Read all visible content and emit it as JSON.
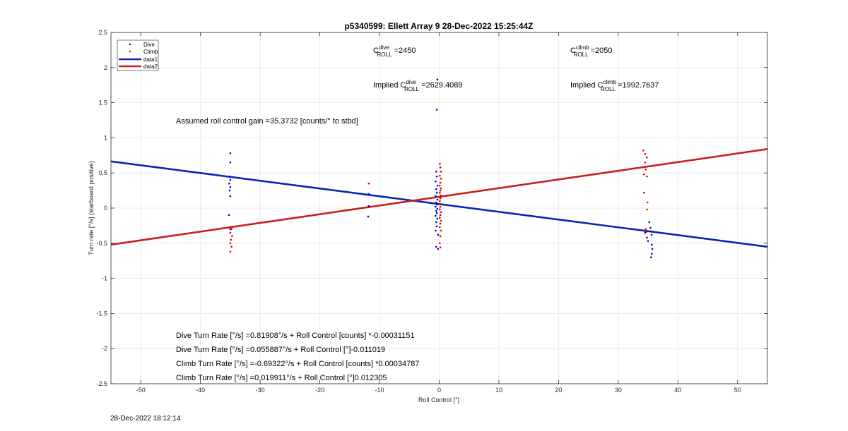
{
  "chart_data": {
    "type": "scatter",
    "title": "p5340599: Ellett Array 9 28-Dec-2022 15:25:44Z",
    "xlabel": "Roll Control [°]",
    "ylabel": "Turn rate [°/s] (starboard positive)",
    "xlim": [
      -55,
      55
    ],
    "ylim": [
      -2.5,
      2.5
    ],
    "xticks": [
      -50,
      -40,
      -30,
      -20,
      -10,
      0,
      10,
      20,
      30,
      40,
      50
    ],
    "yticks": [
      -2.5,
      -2,
      -1.5,
      -1,
      -0.5,
      0,
      0.5,
      1,
      1.5,
      2,
      2.5
    ],
    "grid": true,
    "legend_placement": "top-left",
    "legend": [
      "Dive",
      "Climb",
      "data1",
      "data2"
    ],
    "colors": {
      "dive": "#0000cc",
      "climb": "#dd0000",
      "data1": "#0a24b8",
      "data2": "#c81e1e"
    },
    "series": [
      {
        "name": "Dive",
        "kind": "points",
        "points": [
          [
            -35,
            0.78
          ],
          [
            -35,
            0.65
          ],
          [
            -35.1,
            0.45
          ],
          [
            -35,
            0.4
          ],
          [
            -35.2,
            0.35
          ],
          [
            -35,
            0.3
          ],
          [
            -35.1,
            0.25
          ],
          [
            -35,
            0.17
          ],
          [
            -35.2,
            -0.1
          ],
          [
            -35,
            -0.3
          ],
          [
            -11.8,
            0.2
          ],
          [
            -11.8,
            0.03
          ],
          [
            -11.9,
            -0.12
          ],
          [
            -0.3,
            1.83
          ],
          [
            -0.4,
            1.4
          ],
          [
            -0.5,
            0.52
          ],
          [
            -0.4,
            0.45
          ],
          [
            -0.6,
            0.38
          ],
          [
            -0.3,
            0.32
          ],
          [
            -0.5,
            0.27
          ],
          [
            -0.4,
            0.22
          ],
          [
            -0.6,
            0.17
          ],
          [
            -0.3,
            0.12
          ],
          [
            -0.5,
            0.08
          ],
          [
            -0.4,
            0.05
          ],
          [
            -0.6,
            0.02
          ],
          [
            -0.3,
            -0.01
          ],
          [
            -0.5,
            -0.04
          ],
          [
            -0.4,
            -0.07
          ],
          [
            -0.6,
            -0.11
          ],
          [
            -0.3,
            -0.15
          ],
          [
            -0.5,
            -0.2
          ],
          [
            -0.4,
            -0.26
          ],
          [
            -0.6,
            -0.32
          ],
          [
            -0.2,
            -0.38
          ],
          [
            -0.5,
            -0.55
          ],
          [
            -0.2,
            -0.58
          ],
          [
            34.5,
            -0.35
          ],
          [
            34.8,
            -0.42
          ],
          [
            35,
            -0.47
          ],
          [
            35.2,
            -0.2
          ],
          [
            35.4,
            -0.28
          ],
          [
            35.5,
            -0.33
          ],
          [
            35.6,
            -0.38
          ],
          [
            35.6,
            -0.52
          ],
          [
            35.7,
            -0.58
          ],
          [
            35.6,
            -0.65
          ],
          [
            35.5,
            -0.7
          ]
        ]
      },
      {
        "name": "Climb",
        "kind": "points",
        "points": [
          [
            -35,
            -0.27
          ],
          [
            -34.8,
            -0.3
          ],
          [
            -35,
            -0.35
          ],
          [
            -34.7,
            -0.4
          ],
          [
            -34.9,
            -0.45
          ],
          [
            -35,
            -0.5
          ],
          [
            -34.8,
            -0.55
          ],
          [
            -35,
            -0.62
          ],
          [
            -11.8,
            0.35
          ],
          [
            0.1,
            0.63
          ],
          [
            0.2,
            0.58
          ],
          [
            0.3,
            0.52
          ],
          [
            0.1,
            0.46
          ],
          [
            0.3,
            0.42
          ],
          [
            0.2,
            0.36
          ],
          [
            0.1,
            0.32
          ],
          [
            0.3,
            0.28
          ],
          [
            0.2,
            0.25
          ],
          [
            0.1,
            0.22
          ],
          [
            0.3,
            0.18
          ],
          [
            0.2,
            0.14
          ],
          [
            0.1,
            0.1
          ],
          [
            0.3,
            0.06
          ],
          [
            0.2,
            0.02
          ],
          [
            0.1,
            -0.02
          ],
          [
            0.3,
            -0.06
          ],
          [
            0.2,
            -0.1
          ],
          [
            0.1,
            -0.14
          ],
          [
            0.3,
            -0.18
          ],
          [
            0.2,
            -0.22
          ],
          [
            0.1,
            -0.27
          ],
          [
            0.3,
            -0.32
          ],
          [
            0.2,
            -0.4
          ],
          [
            0.1,
            -0.5
          ],
          [
            0.2,
            -0.56
          ],
          [
            34.2,
            0.82
          ],
          [
            34.5,
            0.77
          ],
          [
            34.8,
            0.72
          ],
          [
            34.5,
            0.65
          ],
          [
            34.6,
            0.55
          ],
          [
            34.3,
            0.48
          ],
          [
            34.8,
            0.45
          ],
          [
            34.3,
            0.22
          ],
          [
            34.9,
            0.08
          ],
          [
            34.8,
            -0.02
          ],
          [
            34.6,
            -0.3
          ],
          [
            34.7,
            -0.34
          ]
        ]
      },
      {
        "name": "data1",
        "kind": "line",
        "x": [
          -55,
          55
        ],
        "y": [
          0.665,
          -0.55
        ]
      },
      {
        "name": "data2",
        "kind": "line",
        "x": [
          -55,
          55
        ],
        "y": [
          -0.52,
          0.84
        ]
      }
    ],
    "annotations": {
      "c_dive": {
        "pre": "C",
        "sup": "dive",
        "sub": "ROLL",
        "post": " =2450"
      },
      "c_climb": {
        "pre": "C",
        "sup": "climb",
        "sub": "ROLL",
        "post": " =2050"
      },
      "implied_dive": {
        "pre": "Implied C",
        "sup": "dive",
        "sub": "ROLL",
        "post": " =2629.4089"
      },
      "implied_climb": {
        "pre": "Implied C",
        "sup": "climb",
        "sub": "ROLL",
        "post": " =1992.7637"
      },
      "gain": "Assumed roll control gain =35.3732 [counts/° to stbd]",
      "eq1": "Dive Turn Rate [°/s] =0.81908°/s + Roll Control [counts] *-0.00031151",
      "eq2": "Dive Turn Rate [°/s] =0.055887°/s + Roll Control [°]-0.011019",
      "eq3": "Climb Turn Rate [°/s] =-0.69322°/s + Roll Control [counts] *0.00034787",
      "eq4": "Climb Turn Rate [°/s] =0.019911°/s + Roll Control [°]0.012305"
    }
  },
  "footer": {
    "timestamp": "28-Dec-2022 18:12:14"
  }
}
